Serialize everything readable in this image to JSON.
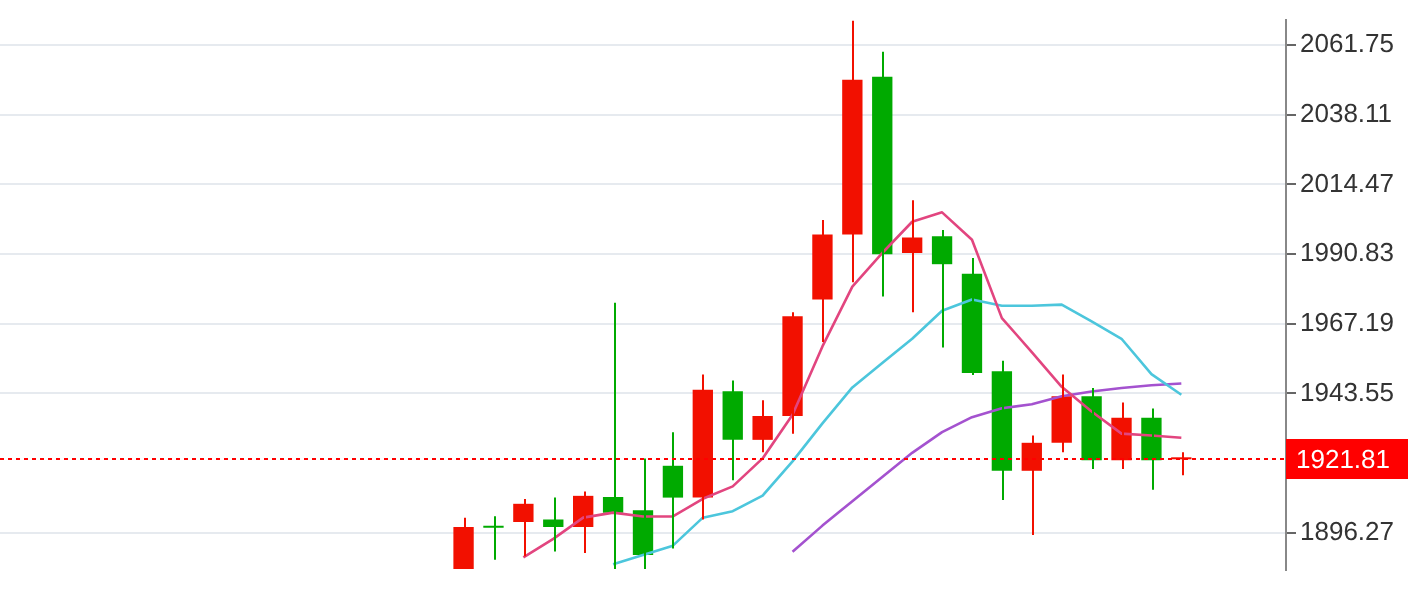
{
  "chart_data": {
    "type": "candlestick",
    "categories": [
      null,
      null,
      null,
      null,
      null,
      null,
      null,
      null,
      null,
      null,
      null,
      null,
      null,
      null,
      null,
      null,
      null,
      null,
      null,
      null,
      null,
      null,
      null,
      null,
      null,
      null,
      null,
      null,
      null,
      null,
      null,
      null,
      null,
      null,
      null,
      null,
      null,
      null,
      null,
      null,
      null,
      null,
      null
    ],
    "ohlc": [
      null,
      null,
      null,
      null,
      null,
      null,
      null,
      null,
      null,
      null,
      null,
      null,
      null,
      null,
      null,
      [
        1884,
        1901.4,
        1884,
        1898.2
      ],
      [
        1898.5,
        1901.9,
        1887.1,
        1898.0
      ],
      [
        1899.9,
        1907.7,
        1888.3,
        1906.1
      ],
      [
        1900.8,
        1908.2,
        1889.9,
        1898.2
      ],
      [
        1898.2,
        1910.3,
        1889.4,
        1908.8
      ],
      [
        1908.4,
        1974.3,
        1884,
        1903.1
      ],
      [
        1903.9,
        1921.5,
        1884,
        1888.7
      ],
      [
        1919.0,
        1930.4,
        1890.9,
        1908.2
      ],
      [
        1908.2,
        1950.0,
        1900.8,
        1944.8
      ],
      [
        1944.3,
        1947.9,
        1914.1,
        1927.8
      ],
      [
        1927.8,
        1941.2,
        1923.6,
        1935.9
      ],
      [
        1935.9,
        1971.1,
        1929.9,
        1969.7
      ],
      [
        1975.4,
        2002.4,
        1961.0,
        1997.5
      ],
      [
        1997.5,
        2070,
        1981.3,
        2050.0
      ],
      [
        2051.0,
        2059.5,
        1976.4,
        1990.8
      ],
      [
        1991.2,
        2009.1,
        1971.1,
        1996.5
      ],
      [
        1996.9,
        1999.0,
        1959.1,
        1987.4
      ],
      [
        1984.2,
        1989.5,
        1949.8,
        1950.5
      ],
      [
        1951.1,
        1954.6,
        1907.4,
        1917.3
      ],
      [
        1917.3,
        1929.3,
        1895.5,
        1926.8
      ],
      [
        1926.8,
        1950.0,
        1923.6,
        1942.6
      ],
      [
        1942.6,
        1945.4,
        1917.9,
        1920.9
      ],
      [
        1920.9,
        1940.5,
        1917.9,
        1935.3
      ],
      [
        1935.3,
        1938.4,
        1910.9,
        1920.9
      ],
      [
        1921.2,
        1923.6,
        1915.8,
        1921.8
      ],
      null,
      null,
      null
    ],
    "colors": [
      null,
      null,
      null,
      null,
      null,
      null,
      null,
      null,
      null,
      null,
      null,
      null,
      null,
      null,
      null,
      "#f21000",
      "#00aa00",
      "#f21000",
      "#00aa00",
      "#f21000",
      "#00aa00",
      "#00aa00",
      "#00aa00",
      "#f21000",
      "#00aa00",
      "#f21000",
      "#f21000",
      "#f21000",
      "#f21000",
      "#00aa00",
      "#f21000",
      "#00aa00",
      "#00aa00",
      "#00aa00",
      "#f21000",
      "#f21000",
      "#00aa00",
      "#f21000",
      "#00aa00",
      "#f21000",
      null,
      null,
      null
    ],
    "series": [
      {
        "type": "line",
        "color": "#e2457f",
        "values": [
          null,
          null,
          null,
          null,
          null,
          null,
          null,
          null,
          null,
          null,
          null,
          null,
          null,
          null,
          null,
          null,
          null,
          1887.9,
          1894.2,
          1901.4,
          1903.1,
          1901.8,
          1901.8,
          1907.8,
          1912.0,
          1921.5,
          1936.3,
          1959.5,
          1979.8,
          1991.2,
          2001.8,
          2005.0,
          1995.7,
          1969.1,
          1957.6,
          1945.8,
          1937.4,
          1929.9,
          1929.3,
          1928.5,
          null,
          null,
          null
        ]
      },
      {
        "type": "line",
        "color": "#4cc6dc",
        "values": [
          null,
          null,
          null,
          null,
          null,
          null,
          null,
          null,
          null,
          null,
          null,
          null,
          null,
          null,
          null,
          null,
          null,
          null,
          null,
          null,
          1885.6,
          1888.7,
          1891.9,
          1901.4,
          1903.6,
          1908.9,
          1920.5,
          1933.4,
          1945.6,
          1953.9,
          1962.1,
          1971.6,
          1975.4,
          1973.3,
          1973.3,
          1973.7,
          1968.0,
          1962.1,
          1950.1,
          1943.1,
          null,
          null,
          null
        ]
      },
      {
        "type": "line",
        "color": "#a452cf",
        "values": [
          null,
          null,
          null,
          null,
          null,
          null,
          null,
          null,
          null,
          null,
          null,
          null,
          null,
          null,
          null,
          null,
          null,
          null,
          null,
          null,
          null,
          null,
          null,
          null,
          null,
          null,
          1889.8,
          1898.7,
          1907.0,
          1915.2,
          1923.4,
          1930.4,
          1935.5,
          1938.5,
          1939.9,
          1942.6,
          1944.2,
          1945.4,
          1946.3,
          1946.9,
          null,
          null,
          null
        ]
      }
    ],
    "ylim": [
      1883.5,
      2070.4
    ],
    "yticks": [
      2061.75,
      2038.11,
      2014.47,
      1990.83,
      1967.19,
      1943.55,
      1896.27
    ],
    "ref_lines": [
      {
        "axis": "y",
        "value": 1921.81,
        "label": "1921.81",
        "color": "#ff0000",
        "line_style": "dotted"
      }
    ],
    "grid": "y",
    "tick_labels": "y",
    "marker": "none"
  }
}
